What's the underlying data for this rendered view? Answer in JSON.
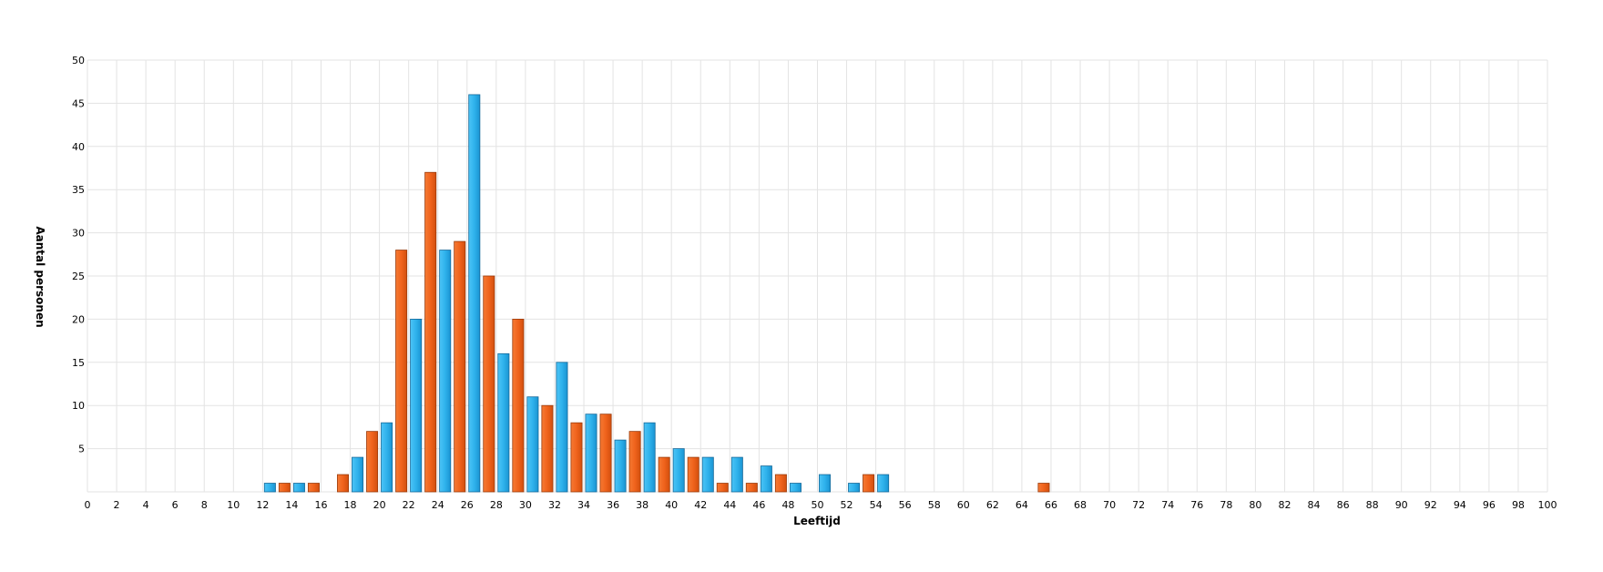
{
  "chart_data": {
    "type": "bar",
    "title": "",
    "xlabel": "Leeftijd",
    "ylabel": "Aantal personen",
    "xlim": [
      0,
      100
    ],
    "ylim": [
      0,
      50
    ],
    "x_ticks": [
      0,
      2,
      4,
      6,
      8,
      10,
      12,
      14,
      16,
      18,
      20,
      22,
      24,
      26,
      28,
      30,
      32,
      34,
      36,
      38,
      40,
      42,
      44,
      46,
      48,
      50,
      52,
      54,
      56,
      58,
      60,
      62,
      64,
      66,
      68,
      70,
      72,
      74,
      76,
      78,
      80,
      82,
      84,
      86,
      88,
      90,
      92,
      94,
      96,
      98,
      100
    ],
    "y_ticks": [
      5,
      10,
      15,
      20,
      25,
      30,
      35,
      40,
      45,
      50
    ],
    "grid": true,
    "legend": "none",
    "colors": {
      "blue": "#2fb2ec",
      "orange": "#f0631c"
    },
    "bars": [
      {
        "x": 12.5,
        "value": 1,
        "color": "blue"
      },
      {
        "x": 13.5,
        "value": 1,
        "color": "orange"
      },
      {
        "x": 14.5,
        "value": 1,
        "color": "blue"
      },
      {
        "x": 15.5,
        "value": 1,
        "color": "orange"
      },
      {
        "x": 17.5,
        "value": 2,
        "color": "orange"
      },
      {
        "x": 18.5,
        "value": 4,
        "color": "blue"
      },
      {
        "x": 19.5,
        "value": 7,
        "color": "orange"
      },
      {
        "x": 20.5,
        "value": 8,
        "color": "blue"
      },
      {
        "x": 21.5,
        "value": 28,
        "color": "orange"
      },
      {
        "x": 22.5,
        "value": 20,
        "color": "blue"
      },
      {
        "x": 23.5,
        "value": 37,
        "color": "orange"
      },
      {
        "x": 24.5,
        "value": 28,
        "color": "blue"
      },
      {
        "x": 25.5,
        "value": 29,
        "color": "orange"
      },
      {
        "x": 26.5,
        "value": 46,
        "color": "blue"
      },
      {
        "x": 27.5,
        "value": 25,
        "color": "orange"
      },
      {
        "x": 28.5,
        "value": 16,
        "color": "blue"
      },
      {
        "x": 29.5,
        "value": 20,
        "color": "orange"
      },
      {
        "x": 30.5,
        "value": 11,
        "color": "blue"
      },
      {
        "x": 31.5,
        "value": 10,
        "color": "orange"
      },
      {
        "x": 32.5,
        "value": 15,
        "color": "blue"
      },
      {
        "x": 33.5,
        "value": 8,
        "color": "orange"
      },
      {
        "x": 34.5,
        "value": 9,
        "color": "blue"
      },
      {
        "x": 35.5,
        "value": 9,
        "color": "orange"
      },
      {
        "x": 36.5,
        "value": 6,
        "color": "blue"
      },
      {
        "x": 37.5,
        "value": 7,
        "color": "orange"
      },
      {
        "x": 38.5,
        "value": 8,
        "color": "blue"
      },
      {
        "x": 39.5,
        "value": 4,
        "color": "orange"
      },
      {
        "x": 40.5,
        "value": 5,
        "color": "blue"
      },
      {
        "x": 41.5,
        "value": 4,
        "color": "orange"
      },
      {
        "x": 42.5,
        "value": 4,
        "color": "blue"
      },
      {
        "x": 43.5,
        "value": 1,
        "color": "orange"
      },
      {
        "x": 44.5,
        "value": 4,
        "color": "blue"
      },
      {
        "x": 45.5,
        "value": 1,
        "color": "orange"
      },
      {
        "x": 46.5,
        "value": 3,
        "color": "blue"
      },
      {
        "x": 47.5,
        "value": 2,
        "color": "orange"
      },
      {
        "x": 48.5,
        "value": 1,
        "color": "blue"
      },
      {
        "x": 50.5,
        "value": 2,
        "color": "blue"
      },
      {
        "x": 52.5,
        "value": 1,
        "color": "blue"
      },
      {
        "x": 53.5,
        "value": 2,
        "color": "orange"
      },
      {
        "x": 54.5,
        "value": 2,
        "color": "blue"
      },
      {
        "x": 65.5,
        "value": 1,
        "color": "orange"
      }
    ]
  }
}
